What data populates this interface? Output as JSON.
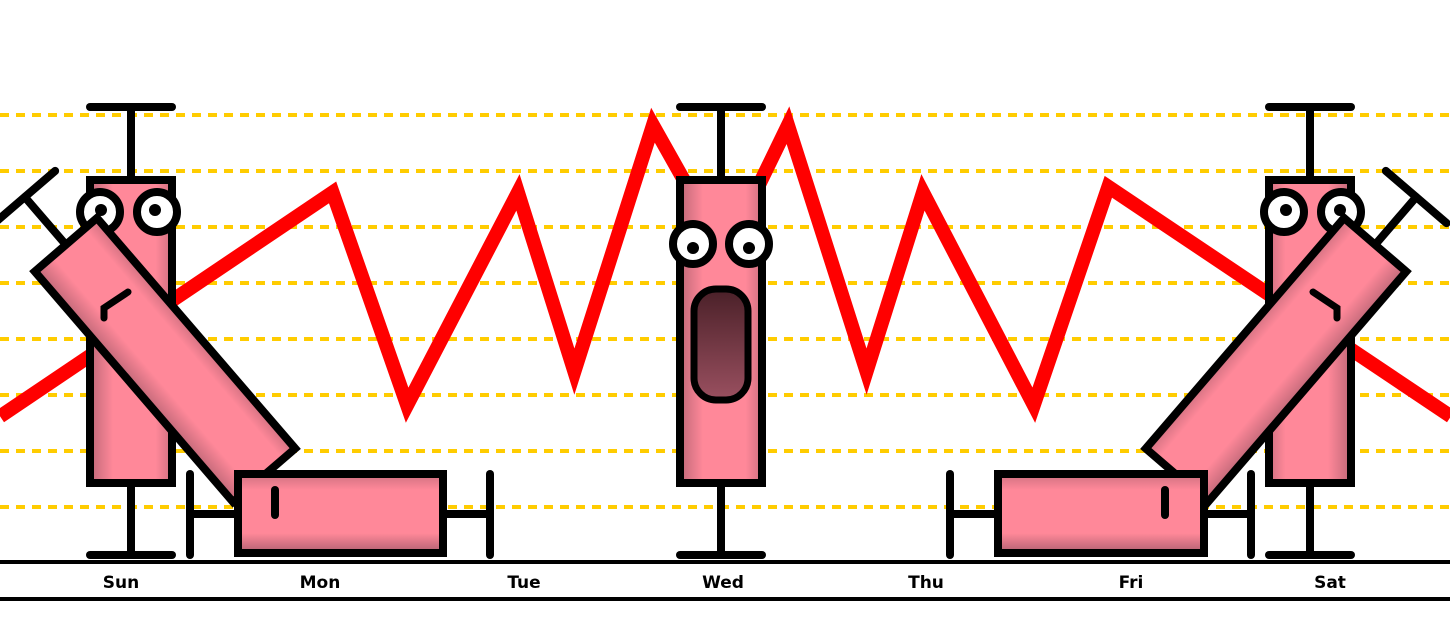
{
  "chart_data": {
    "type": "line",
    "title": "",
    "xlabel": "",
    "ylabel": "",
    "categories": [
      "Sun",
      "Mon",
      "Tue",
      "Wed",
      "Thu",
      "Fri",
      "Sat"
    ],
    "grid": {
      "horizontal": true,
      "style": "dashed",
      "color": "#ffcc00"
    },
    "series": [
      {
        "color": "#ff0000",
        "x": [
          -0.6,
          1.05,
          1.42,
          1.97,
          2.25,
          2.64,
          3.0,
          3.31,
          3.7,
          3.98,
          4.53,
          4.9,
          6.6
        ],
        "y": [
          2.6,
          6.6,
          2.8,
          6.6,
          3.4,
          7.8,
          5.5,
          7.8,
          3.4,
          6.6,
          2.8,
          6.7,
          2.6
        ]
      }
    ],
    "boxplots": [
      {
        "category": "Sun",
        "orientation": "vertical",
        "whisker_low": 0.1,
        "q1": 1.4,
        "q3": 6.8,
        "whisker_high": 8.1,
        "face": "eyes"
      },
      {
        "category": "Sun",
        "orientation": "tilted",
        "face": "frown"
      },
      {
        "category": "Mon",
        "orientation": "horizontal",
        "face": "mark"
      },
      {
        "category": "Wed",
        "orientation": "vertical",
        "whisker_low": 0.1,
        "q1": 1.4,
        "q3": 6.8,
        "whisker_high": 8.1,
        "face": "screaming"
      },
      {
        "category": "Fri",
        "orientation": "horizontal",
        "face": "mark"
      },
      {
        "category": "Sat",
        "orientation": "tilted",
        "face": "frown"
      },
      {
        "category": "Sat",
        "orientation": "vertical",
        "whisker_low": 0.1,
        "q1": 1.4,
        "q3": 6.8,
        "whisker_high": 8.1,
        "face": "eyes"
      }
    ],
    "colors": {
      "box_fill": "#ff8899",
      "box_shade": "#c06878",
      "outline": "#000000",
      "mouth": "#5a2a33"
    }
  }
}
